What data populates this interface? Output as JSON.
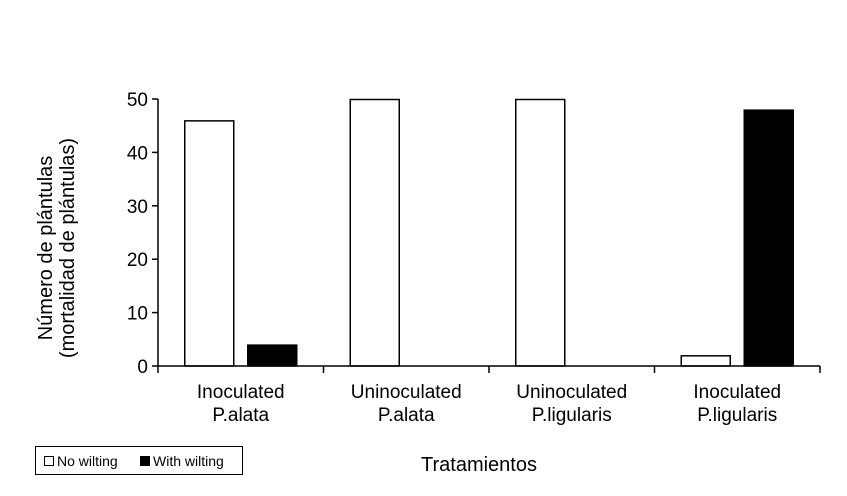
{
  "chart_data": {
    "type": "bar",
    "categories": [
      [
        "Inoculated",
        "P.alata"
      ],
      [
        "Uninoculated",
        "P.alata"
      ],
      [
        "Uninoculated",
        "P.ligularis"
      ],
      [
        "Inoculated",
        "P.ligularis"
      ]
    ],
    "series": [
      {
        "name": "No wilting",
        "color": "#ffffff",
        "values": [
          46,
          50,
          50,
          2
        ]
      },
      {
        "name": "With wilting",
        "color": "#000000",
        "values": [
          4,
          0,
          0,
          48
        ]
      }
    ],
    "xlabel": "Tratamientos",
    "ylabel": [
      "Número de plántulas",
      "(mortalidad de plántulas)"
    ],
    "yticks": [
      0,
      10,
      20,
      30,
      40,
      50
    ],
    "ylim": [
      0,
      50
    ],
    "grid": false,
    "legend_position": "bottom-left"
  }
}
